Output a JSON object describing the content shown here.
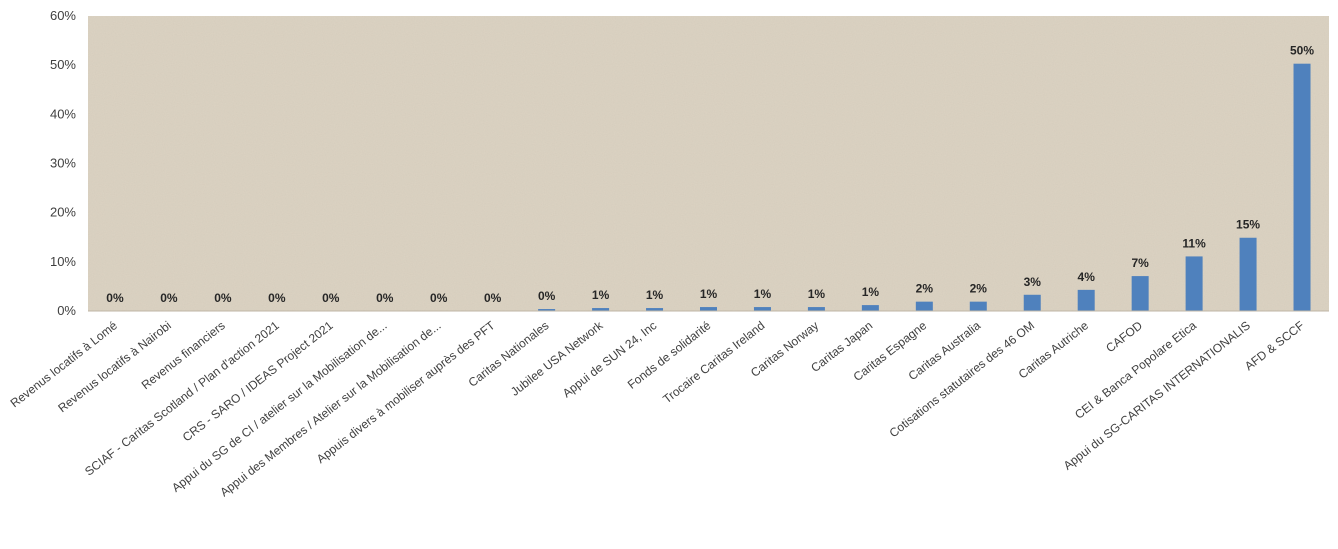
{
  "chart_data": {
    "type": "bar",
    "title": "",
    "xlabel": "",
    "ylabel": "",
    "ylim": [
      0,
      0.6
    ],
    "yticks": [
      0,
      0.1,
      0.2,
      0.3,
      0.4,
      0.5,
      0.6
    ],
    "ytick_labels": [
      "0%",
      "10%",
      "20%",
      "30%",
      "40%",
      "50%",
      "60%"
    ],
    "grid": false,
    "legend": "none",
    "bar_color": "#4f81bd",
    "plot_background": "#dcd3c3",
    "categories": [
      "Revenus locatifs à Lomé",
      "Revenus locatifs à Nairobi",
      "Revenus financiers",
      "SCIAF - Caritas Scotland / Plan d'action 2021",
      "CRS - SARO / IDEAS Project 2021",
      "Appui du SG de CI / atelier sur la Mobilisation de...",
      "Appui des Membres / Atelier sur la Mobilisation de...",
      "Appuis divers à mobiliser auprès des PFT",
      "Caritas Nationales",
      "Jubilee USA Network",
      "Appui de SUN 24, Inc",
      "Fonds de solidarité",
      "Trocaire Caritas Ireland",
      "Caritas Norway",
      "Caritas Japan",
      "Caritas Espagne",
      "Caritas Australia",
      "Cotisations statutaires des 46 OM",
      "Caritas Autriche",
      "CAFOD",
      "CEI & Banca Popolare Etica",
      "Appui du SG-CARITAS INTERNATIONALIS",
      "AFD & SCCF"
    ],
    "values": [
      0.0,
      0.0,
      0.0,
      0.0,
      0.0,
      0.0,
      0.0,
      0.0,
      0.004,
      0.006,
      0.006,
      0.008,
      0.008,
      0.008,
      0.012,
      0.019,
      0.019,
      0.033,
      0.043,
      0.071,
      0.111,
      0.149,
      0.503
    ],
    "data_labels": [
      "0%",
      "0%",
      "0%",
      "0%",
      "0%",
      "0%",
      "0%",
      "0%",
      "0%",
      "1%",
      "1%",
      "1%",
      "1%",
      "1%",
      "1%",
      "2%",
      "2%",
      "3%",
      "4%",
      "7%",
      "11%",
      "15%",
      "50%"
    ]
  }
}
